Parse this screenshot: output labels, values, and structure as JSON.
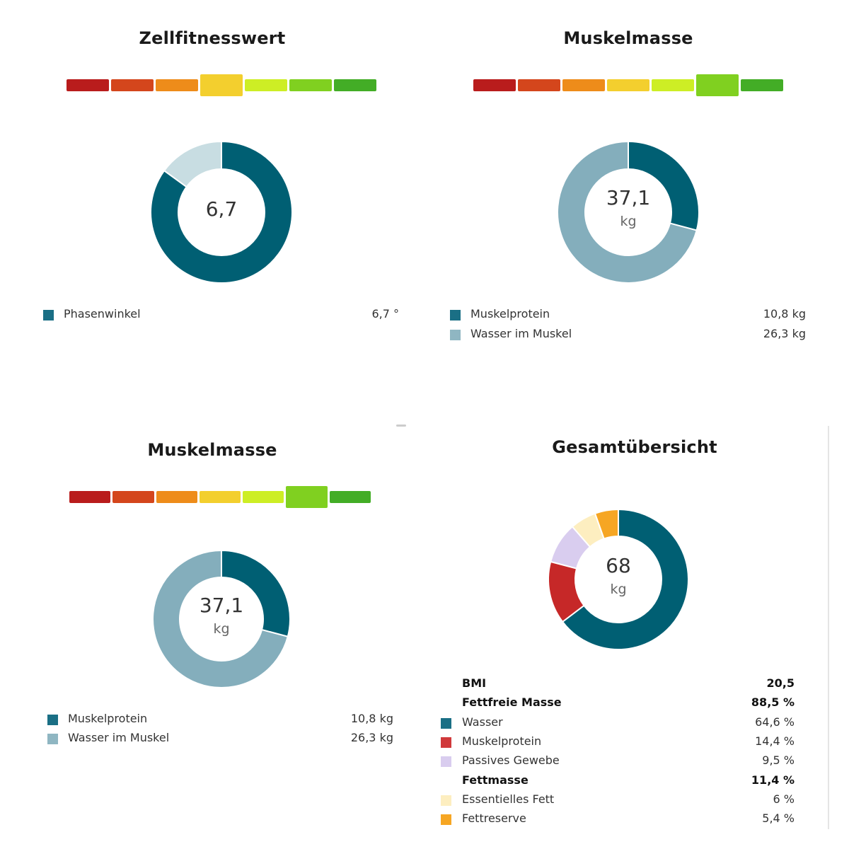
{
  "scale_colors": [
    "#b91c1c",
    "#d4461c",
    "#ee8c1a",
    "#f3cf2e",
    "#cdee25",
    "#80d020",
    "#43ad26"
  ],
  "panels": {
    "zellfitness": {
      "title": "Zellfitnesswert",
      "scale_active": 3,
      "center_value": "6,7",
      "chart_data": {
        "type": "pie",
        "slices": [
          {
            "value": 0.85,
            "color": "#005f73"
          },
          {
            "value": 0.15,
            "color": "#c8dde2"
          }
        ]
      },
      "legend": [
        {
          "label": "Phasenwinkel",
          "value": "6,7 °",
          "color": "#1a6f85"
        }
      ]
    },
    "muskel1": {
      "title": "Muskelmasse",
      "scale_active": 5,
      "center_value": "37,1",
      "center_unit": "kg",
      "chart_data": {
        "type": "pie",
        "slices": [
          {
            "value": 10.8,
            "color": "#005f73"
          },
          {
            "value": 26.3,
            "color": "#84aebc"
          }
        ]
      },
      "legend": [
        {
          "label": "Muskelprotein",
          "value": "10,8 kg",
          "color": "#1a6f85"
        },
        {
          "label": "Wasser im Muskel",
          "value": "26,3 kg",
          "color": "#8fb6c2"
        }
      ]
    },
    "muskel2": {
      "title": "Muskelmasse",
      "scale_active": 5,
      "center_value": "37,1",
      "center_unit": "kg",
      "chart_data": {
        "type": "pie",
        "slices": [
          {
            "value": 10.8,
            "color": "#005f73"
          },
          {
            "value": 26.3,
            "color": "#84aebc"
          }
        ]
      },
      "legend": [
        {
          "label": "Muskelprotein",
          "value": "10,8 kg",
          "color": "#1a6f85"
        },
        {
          "label": "Wasser im Muskel",
          "value": "26,3 kg",
          "color": "#8fb6c2"
        }
      ]
    },
    "gesamt": {
      "title": "Gesamtübersicht",
      "center_value": "68",
      "center_unit": "kg",
      "chart_data": {
        "type": "pie",
        "slices": [
          {
            "value": 64.6,
            "color": "#005f73"
          },
          {
            "value": 14.4,
            "color": "#c62828"
          },
          {
            "value": 9.5,
            "color": "#d9cdef"
          },
          {
            "value": 6,
            "color": "#fdeec0"
          },
          {
            "value": 5.4,
            "color": "#f6a623"
          }
        ]
      },
      "legend": [
        {
          "label": "BMI",
          "value": "20,5",
          "color": "",
          "bold": true
        },
        {
          "label": "Fettfreie Masse",
          "value": "88,5 %",
          "color": "",
          "bold": true
        },
        {
          "label": "Wasser",
          "value": "64,6 %",
          "color": "#1a6f85"
        },
        {
          "label": "Muskelprotein",
          "value": "14,4 %",
          "color": "#d0393b"
        },
        {
          "label": "Passives Gewebe",
          "value": "9,5 %",
          "color": "#d9cdef"
        },
        {
          "label": "Fettmasse",
          "value": "11,4 %",
          "color": "",
          "bold": true
        },
        {
          "label": "Essentielles Fett",
          "value": "6 %",
          "color": "#fdeec0"
        },
        {
          "label": "Fettreserve",
          "value": "5,4 %",
          "color": "#f6a623"
        }
      ]
    }
  }
}
